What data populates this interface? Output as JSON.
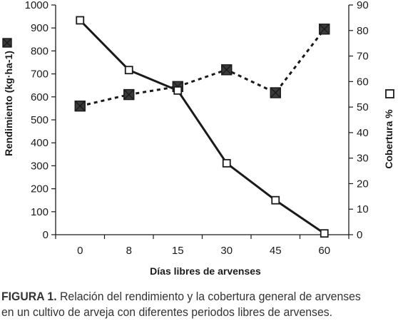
{
  "chart_data": {
    "type": "line",
    "x_categories": [
      "0",
      "8",
      "15",
      "30",
      "45",
      "60"
    ],
    "xlabel": "Días libres de arvenses",
    "left_axis": {
      "label": "Rendimiento (kg·ha-1)",
      "ylim": [
        0,
        1000
      ],
      "ticks": [
        0,
        100,
        200,
        300,
        400,
        500,
        600,
        700,
        800,
        900,
        1000
      ]
    },
    "right_axis": {
      "label": "Cobertura %",
      "ylim": [
        0,
        90
      ],
      "ticks": [
        0,
        10,
        20,
        30,
        40,
        50,
        60,
        70,
        80,
        90
      ]
    },
    "series": [
      {
        "axis": "left",
        "marker": "crossed-square",
        "line": "dashed",
        "values": [
          560,
          610,
          645,
          718,
          618,
          895
        ]
      },
      {
        "axis": "right",
        "marker": "open-square",
        "line": "solid",
        "values": [
          84,
          64.5,
          56.5,
          28,
          13.5,
          0.5
        ]
      }
    ],
    "grid": false,
    "colors": {
      "line": "#1a1a1a",
      "filled_marker": "#3a3a3a",
      "open_marker": "#ffffff"
    }
  },
  "caption": {
    "label": "FIGURA 1.",
    "line1_rest": " Relación del rendimiento y la cobertura general de arvenses",
    "line2": "en un cultivo de arveja con diferentes periodos libres de arvenses."
  }
}
